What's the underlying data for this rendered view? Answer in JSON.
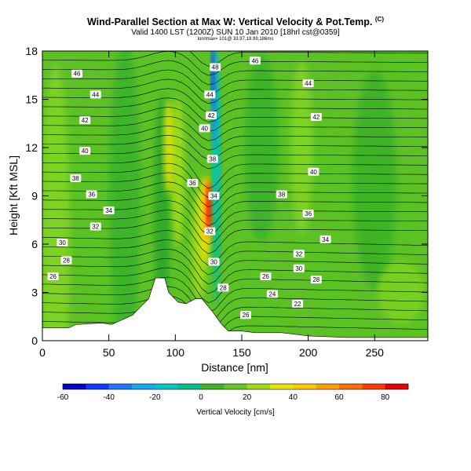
{
  "chart_data": {
    "type": "heatmap",
    "title": "Wind-Parallel Section at Max W: Vertical Velocity & Pot.Temp.",
    "title_mark": "(C)",
    "subtitle": "Valid 1400 LST (1200Z) SUN 10 Jan 2010 [18hrl cst@0359]",
    "subtitle2": "lon/lmax= 101@ 33.97,19.99,186ms",
    "xlabel": "Distance [nm]",
    "ylabel": "Height [Kft MSL]",
    "xlim": [
      0,
      290
    ],
    "ylim": [
      0,
      18
    ],
    "xticks": [
      0,
      50,
      100,
      150,
      200,
      250
    ],
    "yticks": [
      0,
      3,
      6,
      9,
      12,
      15,
      18
    ],
    "colorbar": {
      "label": "Vertical Velocity [cm/s]",
      "range": [
        -60,
        90
      ],
      "ticks": [
        -60,
        -40,
        -20,
        0,
        20,
        40,
        60,
        80
      ]
    },
    "terrain": [
      [
        0,
        0.8
      ],
      [
        20,
        0.8
      ],
      [
        25,
        1.0
      ],
      [
        45,
        1.1
      ],
      [
        52,
        1.0
      ],
      [
        60,
        1.3
      ],
      [
        68,
        1.6
      ],
      [
        75,
        2.2
      ],
      [
        80,
        2.6
      ],
      [
        85,
        3.9
      ],
      [
        92,
        3.9
      ],
      [
        95,
        3.0
      ],
      [
        102,
        2.4
      ],
      [
        108,
        2.3
      ],
      [
        115,
        2.6
      ],
      [
        120,
        2.6
      ],
      [
        128,
        1.8
      ],
      [
        135,
        1.0
      ],
      [
        140,
        0.6
      ],
      [
        150,
        0.6
      ],
      [
        160,
        0.5
      ],
      [
        180,
        0.5
      ],
      [
        200,
        0.3
      ],
      [
        230,
        0.2
      ],
      [
        290,
        0.2
      ]
    ],
    "velocity_features": [
      {
        "x": 127,
        "y": 8.5,
        "value": 90
      },
      {
        "x": 124,
        "y": 11,
        "value": 30
      },
      {
        "x": 108,
        "y": 11,
        "value": 30
      },
      {
        "x": 128,
        "y": 15.5,
        "value": -60
      },
      {
        "x": 132,
        "y": 9,
        "value": -25
      },
      {
        "x": 100,
        "y": 5,
        "value": 15
      }
    ],
    "isentrope_labels": [
      {
        "x": 8,
        "y": 4,
        "value": "26"
      },
      {
        "x": 18,
        "y": 5,
        "value": "28"
      },
      {
        "x": 15,
        "y": 6.1,
        "value": "30"
      },
      {
        "x": 40,
        "y": 7.1,
        "value": "32"
      },
      {
        "x": 50,
        "y": 8.1,
        "value": "34"
      },
      {
        "x": 37,
        "y": 9.1,
        "value": "36"
      },
      {
        "x": 25,
        "y": 10.1,
        "value": "38"
      },
      {
        "x": 32,
        "y": 11.8,
        "value": "40"
      },
      {
        "x": 32,
        "y": 13.7,
        "value": "42"
      },
      {
        "x": 40,
        "y": 15.3,
        "value": "44"
      },
      {
        "x": 26,
        "y": 16.6,
        "value": "46"
      },
      {
        "x": 130,
        "y": 17.0,
        "value": "48"
      },
      {
        "x": 126,
        "y": 15.3,
        "value": "44"
      },
      {
        "x": 127,
        "y": 14.0,
        "value": "42"
      },
      {
        "x": 122,
        "y": 13.2,
        "value": "40"
      },
      {
        "x": 128,
        "y": 11.3,
        "value": "38"
      },
      {
        "x": 113,
        "y": 9.8,
        "value": "36"
      },
      {
        "x": 129,
        "y": 9.0,
        "value": "34"
      },
      {
        "x": 126,
        "y": 6.8,
        "value": "32"
      },
      {
        "x": 129,
        "y": 4.9,
        "value": "30"
      },
      {
        "x": 136,
        "y": 3.3,
        "value": "28"
      },
      {
        "x": 153,
        "y": 1.6,
        "value": "26"
      },
      {
        "x": 160,
        "y": 17.4,
        "value": "46"
      },
      {
        "x": 200,
        "y": 16.0,
        "value": "44"
      },
      {
        "x": 206,
        "y": 13.9,
        "value": "42"
      },
      {
        "x": 204,
        "y": 10.5,
        "value": "40"
      },
      {
        "x": 180,
        "y": 9.1,
        "value": "38"
      },
      {
        "x": 200,
        "y": 7.9,
        "value": "36"
      },
      {
        "x": 213,
        "y": 6.3,
        "value": "34"
      },
      {
        "x": 193,
        "y": 5.4,
        "value": "32"
      },
      {
        "x": 193,
        "y": 4.5,
        "value": "30"
      },
      {
        "x": 168,
        "y": 4.0,
        "value": "26"
      },
      {
        "x": 206,
        "y": 3.8,
        "value": "28"
      },
      {
        "x": 173,
        "y": 2.9,
        "value": "24"
      },
      {
        "x": 192,
        "y": 2.3,
        "value": "22"
      }
    ]
  }
}
